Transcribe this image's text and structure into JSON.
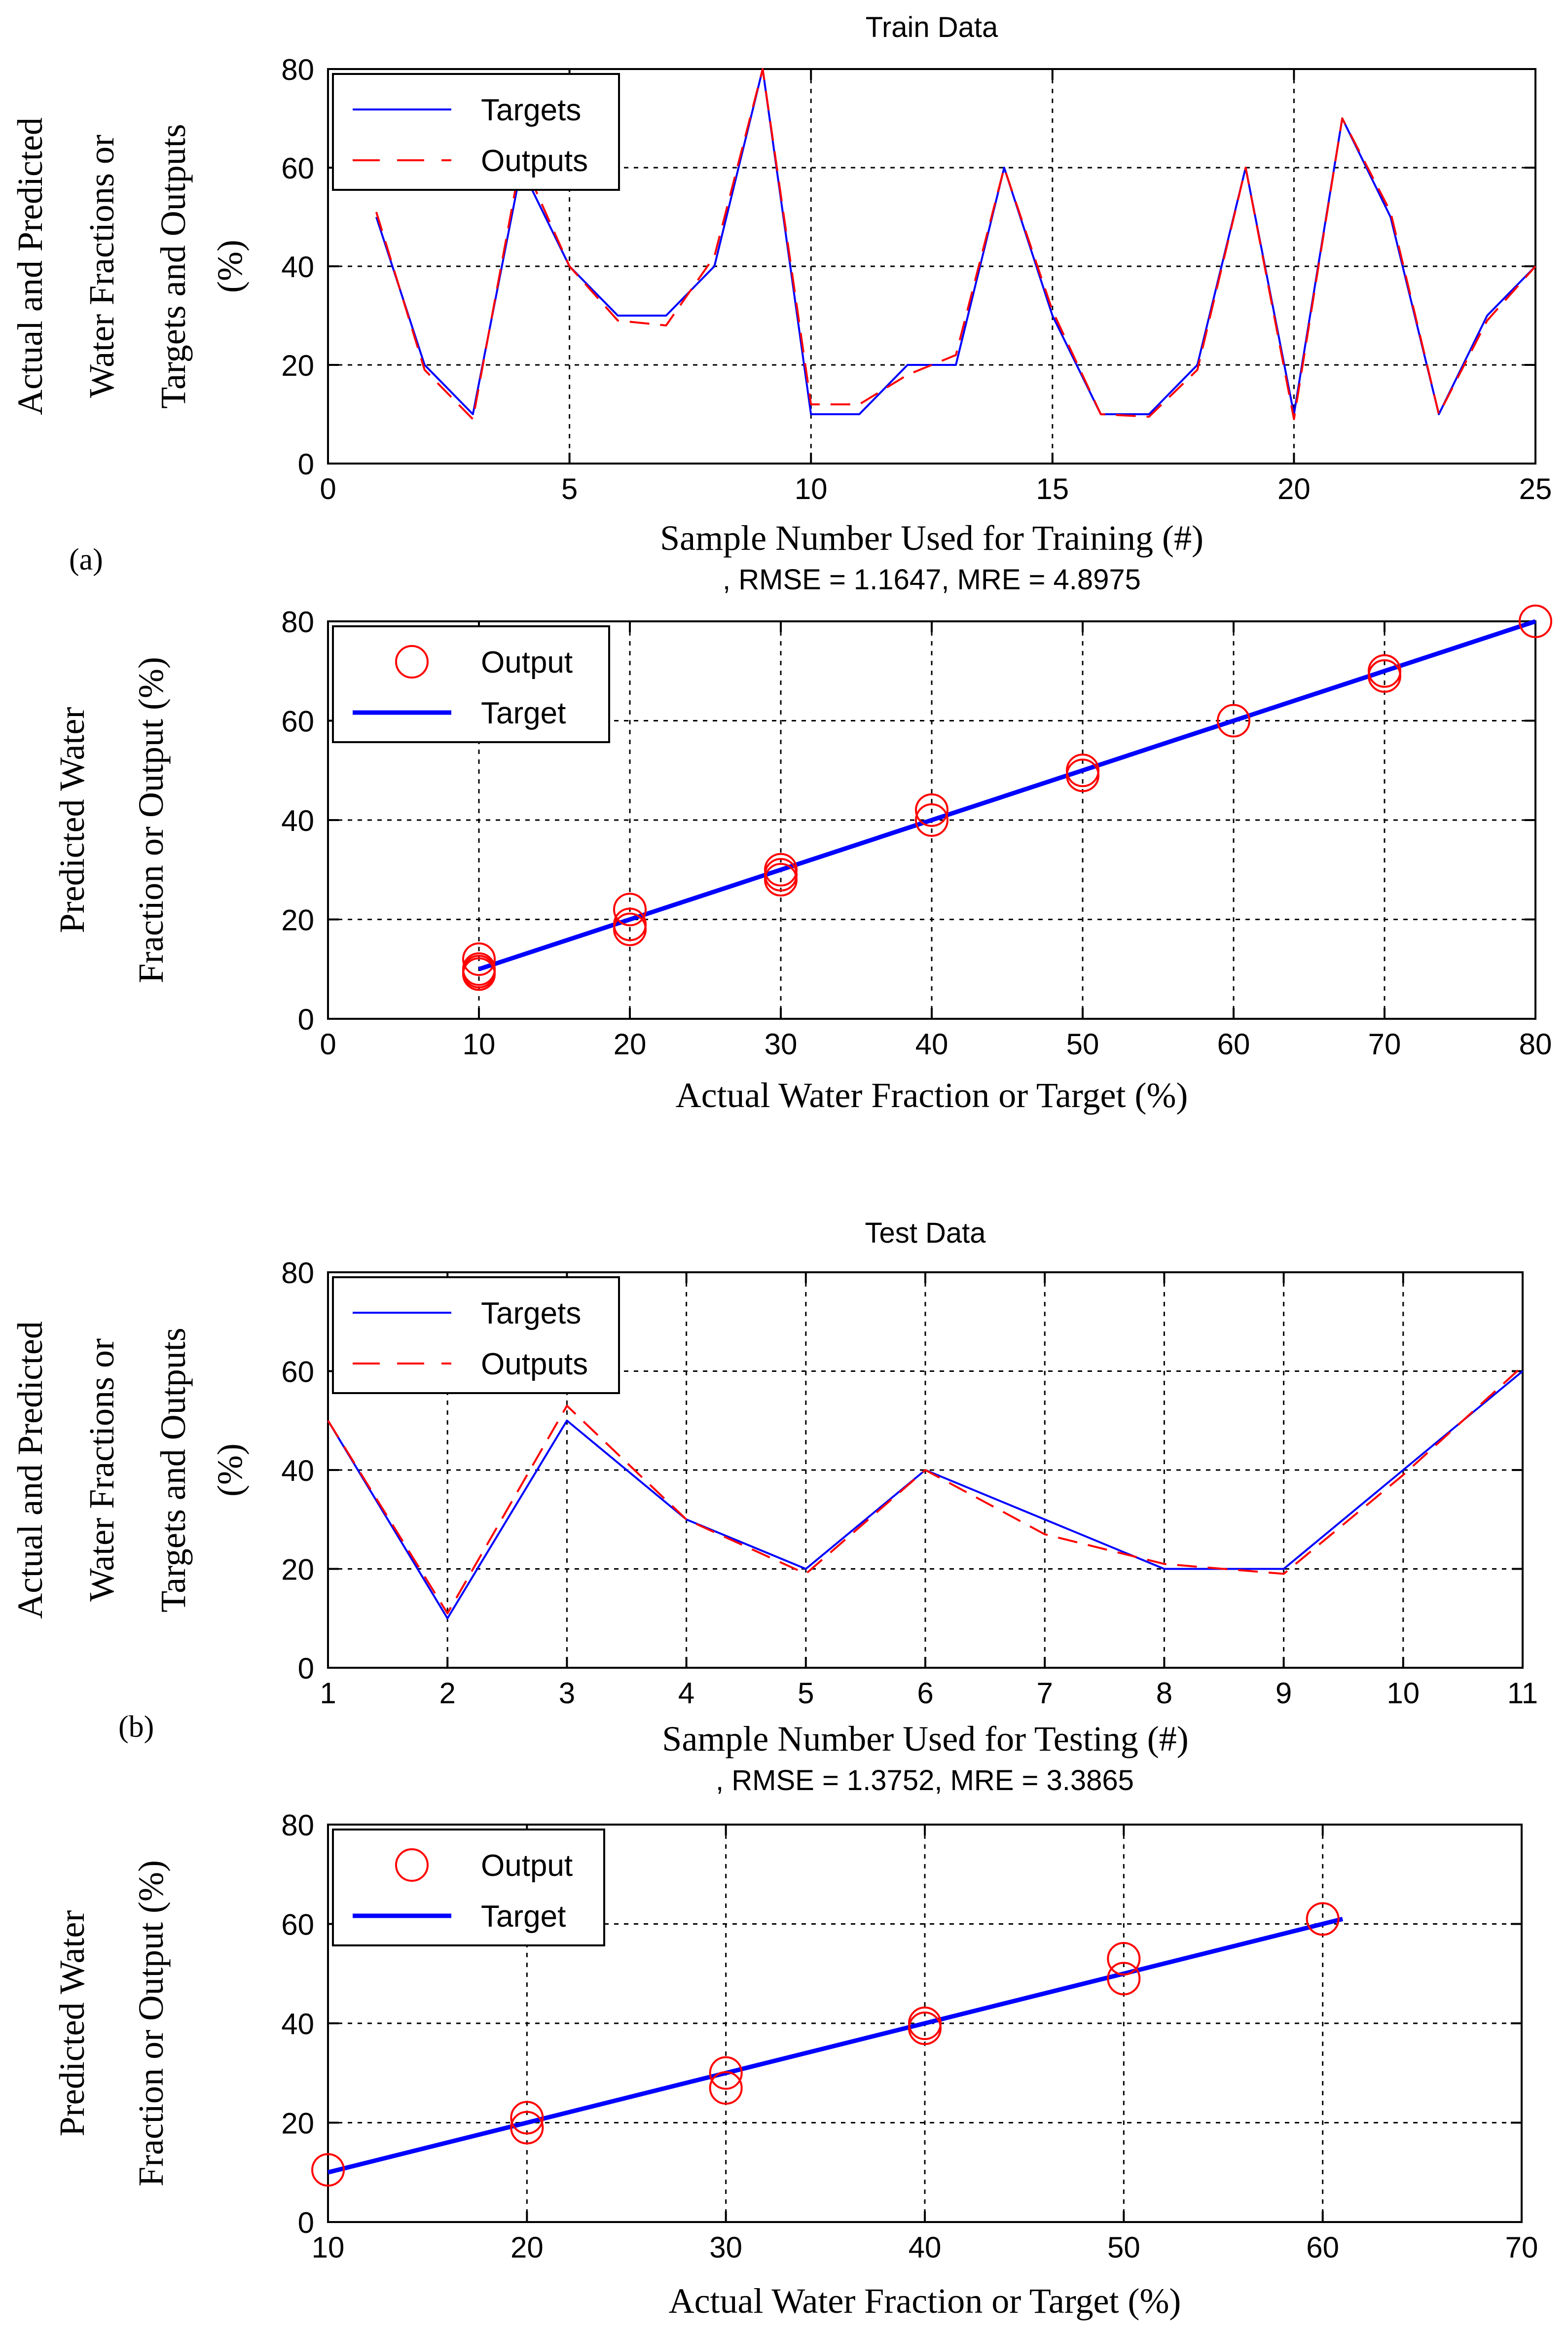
{
  "panel_labels": {
    "a": "(a)",
    "b": "(b)"
  },
  "colors": {
    "target": "#0000ff",
    "output": "#ff0000",
    "axis": "#000000",
    "grid": "#000000",
    "background": "#ffffff"
  },
  "chart_data": [
    {
      "id": "train-series",
      "type": "line",
      "title": "Train Data",
      "subtitle": "",
      "xlabel": "Sample Number Used for Training (#)",
      "ylabel_lines": [
        "Actual and Predicted",
        "Water Fractions or",
        "Targets and Outputs",
        "(%)"
      ],
      "xlim": [
        0,
        25
      ],
      "ylim": [
        0,
        80
      ],
      "xticks": [
        0,
        5,
        10,
        15,
        20,
        25
      ],
      "yticks": [
        0,
        20,
        40,
        60,
        80
      ],
      "grid": true,
      "legend": {
        "position": "top-left",
        "entries": [
          "Targets",
          "Outputs"
        ]
      },
      "x": [
        1,
        2,
        3,
        4,
        5,
        6,
        7,
        8,
        9,
        10,
        11,
        12,
        13,
        14,
        15,
        16,
        17,
        18,
        19,
        20,
        21,
        22,
        23,
        24,
        25
      ],
      "series": [
        {
          "name": "Targets",
          "style": "solid",
          "values": [
            50,
            20,
            10,
            60,
            40,
            30,
            30,
            40,
            80,
            10,
            10,
            20,
            20,
            60,
            30,
            10,
            10,
            20,
            60,
            10,
            70,
            50,
            10,
            30,
            40
          ]
        },
        {
          "name": "Outputs",
          "style": "dashed",
          "values": [
            51,
            19,
            9,
            62,
            40,
            29,
            28,
            42,
            80,
            12,
            12,
            18,
            22,
            60,
            31,
            10,
            9.5,
            19,
            60,
            9,
            70,
            51,
            10,
            29,
            40
          ]
        }
      ]
    },
    {
      "id": "train-scatter",
      "type": "scatter",
      "title": ", RMSE = 1.1647, MRE = 4.8975",
      "xlabel": "Actual Water Fraction or Target (%)",
      "ylabel_lines": [
        "Predicted Water",
        "Fraction or Output (%)"
      ],
      "xlim": [
        0,
        80
      ],
      "ylim": [
        0,
        80
      ],
      "xticks": [
        0,
        10,
        20,
        30,
        40,
        50,
        60,
        70,
        80
      ],
      "yticks": [
        0,
        20,
        40,
        60,
        80
      ],
      "grid": true,
      "legend": {
        "position": "top-left",
        "entries": [
          "Output",
          "Target"
        ]
      },
      "points": [
        [
          10,
          12
        ],
        [
          10,
          10
        ],
        [
          10,
          9
        ],
        [
          10,
          9.5
        ],
        [
          20,
          22
        ],
        [
          20,
          19
        ],
        [
          20,
          18
        ],
        [
          30,
          30
        ],
        [
          30,
          29
        ],
        [
          30,
          28
        ],
        [
          40,
          42
        ],
        [
          40,
          40
        ],
        [
          50,
          50
        ],
        [
          50,
          49
        ],
        [
          60,
          60
        ],
        [
          70,
          70
        ],
        [
          70,
          69
        ],
        [
          80,
          80
        ]
      ],
      "target_line": [
        [
          10,
          10
        ],
        [
          80,
          80
        ]
      ]
    },
    {
      "id": "test-series",
      "type": "line",
      "title": "Test Data",
      "subtitle": "",
      "xlabel": "Sample Number Used for Testing (#)",
      "ylabel_lines": [
        "Actual and Predicted",
        "Water Fractions or",
        "Targets and Outputs",
        "(%)"
      ],
      "xlim": [
        1,
        11
      ],
      "ylim": [
        0,
        80
      ],
      "xticks": [
        1,
        2,
        3,
        4,
        5,
        6,
        7,
        8,
        9,
        10,
        11
      ],
      "yticks": [
        0,
        20,
        40,
        60,
        80
      ],
      "grid": true,
      "legend": {
        "position": "top-left",
        "entries": [
          "Targets",
          "Outputs"
        ]
      },
      "x": [
        1,
        2,
        3,
        4,
        5,
        6,
        7,
        8,
        9,
        10,
        11
      ],
      "series": [
        {
          "name": "Targets",
          "style": "solid",
          "values": [
            50,
            10,
            50,
            30,
            20,
            40,
            30,
            20,
            20,
            40,
            60
          ]
        },
        {
          "name": "Outputs",
          "style": "dashed",
          "values": [
            50,
            11,
            53,
            30,
            19,
            40,
            27,
            21,
            19,
            39,
            61
          ]
        }
      ]
    },
    {
      "id": "test-scatter",
      "type": "scatter",
      "title": ", RMSE = 1.3752, MRE = 3.3865",
      "xlabel": "Actual Water Fraction or Target (%)",
      "ylabel_lines": [
        "Predicted Water",
        "Fraction or Output (%)"
      ],
      "xlim": [
        10,
        70
      ],
      "ylim": [
        0,
        80
      ],
      "xticks": [
        10,
        20,
        30,
        40,
        50,
        60,
        70
      ],
      "yticks": [
        0,
        20,
        40,
        60,
        80
      ],
      "grid": true,
      "legend": {
        "position": "top-left",
        "entries": [
          "Output",
          "Target"
        ]
      },
      "points": [
        [
          10,
          10.5
        ],
        [
          20,
          21
        ],
        [
          20,
          19
        ],
        [
          30,
          30
        ],
        [
          30,
          27
        ],
        [
          40,
          40
        ],
        [
          40,
          39
        ],
        [
          50,
          53
        ],
        [
          50,
          49
        ],
        [
          60,
          61
        ]
      ],
      "target_line": [
        [
          10,
          10
        ],
        [
          61,
          61
        ]
      ]
    }
  ]
}
